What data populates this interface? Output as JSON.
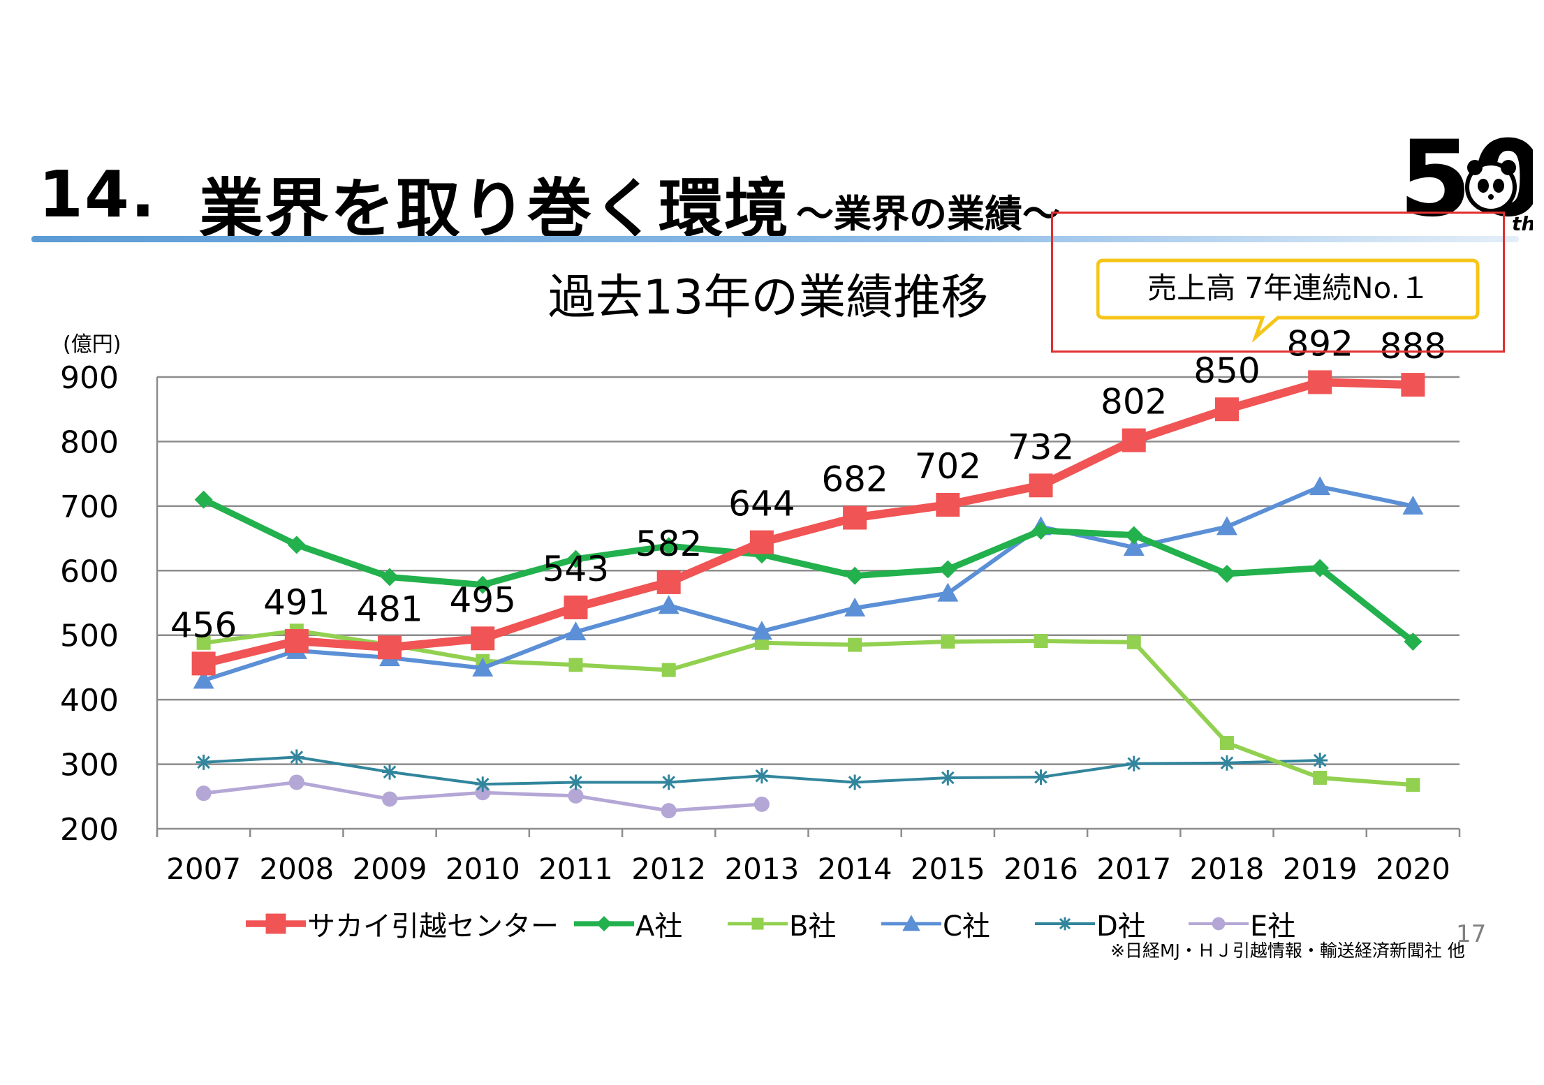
{
  "slide": {
    "title_number": "14.",
    "title": "業界を取り巻く環境",
    "subtitle": "～業界の業績～",
    "logo_text": "50",
    "logo_suffix": "th",
    "page_number": "17",
    "source": "※日経MJ・ＨＪ引越情報・輸送経済新聞社 他",
    "callout": "売上高 7年連続No.１"
  },
  "colors": {
    "サカイ引越センター": "#f05454",
    "A社": "#22b14c",
    "B社": "#92d050",
    "C社": "#5b8fd6",
    "D社": "#31859c",
    "E社": "#b4a7d6",
    "grid": "#8c8c8c",
    "title_rule": "#5b9bd5",
    "callout_border": "#f5c518",
    "highlight_box": "#e03030"
  },
  "chart_data": {
    "type": "line",
    "title": "過去13年の業績推移",
    "unit_label": "(億円)",
    "categories": [
      "2007",
      "2008",
      "2009",
      "2010",
      "2011",
      "2012",
      "2013",
      "2014",
      "2015",
      "2016",
      "2017",
      "2018",
      "2019",
      "2020"
    ],
    "ylim": [
      200,
      900
    ],
    "yticks": [
      200,
      300,
      400,
      500,
      600,
      700,
      800,
      900
    ],
    "grid": true,
    "legend_position": "bottom",
    "series": [
      {
        "name": "サカイ引越センター",
        "marker": "square",
        "values": [
          456,
          491,
          481,
          495,
          543,
          582,
          644,
          682,
          702,
          732,
          802,
          850,
          892,
          888
        ],
        "labels": [
          "456",
          "491",
          "481",
          "495",
          "543",
          "582",
          "644",
          "682",
          "702",
          "732",
          "802",
          "850",
          "892",
          "888"
        ]
      },
      {
        "name": "A社",
        "marker": "diamond",
        "values": [
          710,
          640,
          590,
          578,
          618,
          638,
          625,
          592,
          602,
          662,
          655,
          595,
          604,
          490
        ]
      },
      {
        "name": "B社",
        "marker": "small-square",
        "values": [
          488,
          507,
          485,
          460,
          454,
          446,
          488,
          485,
          490,
          491,
          489,
          333,
          279,
          268
        ]
      },
      {
        "name": "C社",
        "marker": "triangle",
        "values": [
          430,
          476,
          465,
          449,
          505,
          546,
          506,
          542,
          565,
          668,
          636,
          668,
          730,
          700
        ]
      },
      {
        "name": "D社",
        "marker": "asterisk",
        "values": [
          303,
          311,
          288,
          269,
          272,
          272,
          282,
          272,
          279,
          280,
          301,
          302,
          306,
          null
        ]
      },
      {
        "name": "E社",
        "marker": "circle",
        "values": [
          255,
          272,
          246,
          256,
          251,
          228,
          238,
          null,
          null,
          null,
          null,
          null,
          null,
          null
        ]
      }
    ]
  }
}
